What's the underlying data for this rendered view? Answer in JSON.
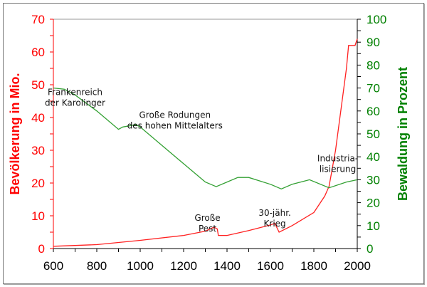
{
  "chart_data": {
    "type": "line",
    "x_ticks": [
      600,
      800,
      1000,
      1200,
      1400,
      1600,
      1800,
      2000
    ],
    "xlim": [
      600,
      2000
    ],
    "left_axis": {
      "label": "Bevölkerung in Mio.",
      "ylim": [
        0,
        70
      ],
      "ticks": [
        0,
        10,
        20,
        30,
        40,
        50,
        60,
        70
      ],
      "color": "#ff0000"
    },
    "right_axis": {
      "label": "Bewaldung in Prozent",
      "ylim": [
        0,
        100
      ],
      "ticks": [
        0,
        10,
        20,
        30,
        40,
        50,
        60,
        70,
        80,
        90,
        100
      ],
      "color": "#008000"
    },
    "series": [
      {
        "name": "Bevölkerung",
        "axis": "left",
        "color": "#ff2020",
        "x": [
          600,
          800,
          1000,
          1200,
          1300,
          1340,
          1355,
          1360,
          1400,
          1500,
          1600,
          1620,
          1640,
          1700,
          1800,
          1850,
          1870,
          1900,
          1950,
          1960,
          1990,
          2000
        ],
        "y": [
          0.7,
          1.2,
          2.5,
          4,
          5.3,
          6.5,
          6,
          4,
          4,
          5.5,
          7.2,
          7.7,
          5,
          7,
          11,
          16,
          19,
          30,
          55,
          62,
          62,
          64
        ]
      },
      {
        "name": "Bewaldung",
        "axis": "right",
        "color": "#33a033",
        "x": [
          600,
          650,
          700,
          800,
          900,
          920,
          980,
          1000,
          1100,
          1200,
          1300,
          1350,
          1400,
          1450,
          1500,
          1600,
          1650,
          1700,
          1780,
          1870,
          1950,
          2000
        ],
        "y": [
          70,
          69.5,
          67,
          60,
          52,
          53,
          54,
          53,
          45,
          37,
          29,
          27,
          29,
          31,
          31,
          28,
          26,
          28,
          30,
          26.5,
          29,
          30
        ]
      }
    ],
    "annotations": [
      {
        "lines": [
          "Frankenreich",
          "der Karolinger"
        ],
        "x": 700,
        "pct": 67
      },
      {
        "lines": [
          "Große Rodungen",
          "des hohen Mittelalters"
        ],
        "x": 1160,
        "pct": 57
      },
      {
        "lines": [
          "Große",
          "Pest"
        ],
        "x": 1310,
        "mio": 8.5
      },
      {
        "lines": [
          "30-jähr.",
          "Krieg"
        ],
        "x": 1620,
        "mio": 10
      },
      {
        "lines": [
          "Industria-",
          "lisierung"
        ],
        "x": 1910,
        "pct": 38
      }
    ]
  }
}
